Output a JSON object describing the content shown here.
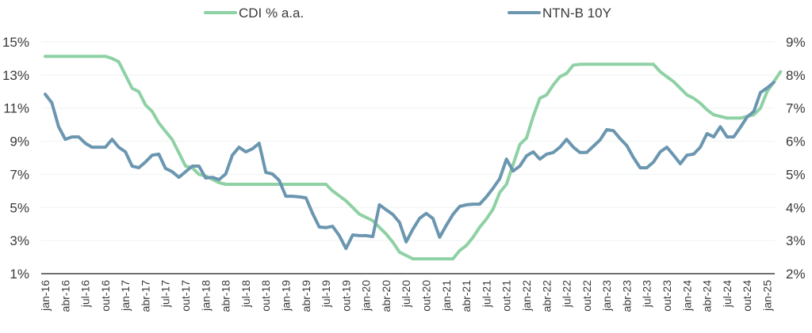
{
  "chart_data": {
    "type": "line",
    "title": "",
    "xlabel": "",
    "ylabel": "",
    "ylabel_right": "",
    "legend_position": "top-center",
    "grid": true,
    "left_axis": {
      "ylim": [
        1,
        15
      ],
      "ticks": [
        "1%",
        "3%",
        "5%",
        "7%",
        "9%",
        "11%",
        "13%",
        "15%"
      ]
    },
    "right_axis": {
      "ylim": [
        2,
        9
      ],
      "ticks": [
        "2%",
        "3%",
        "4%",
        "5%",
        "6%",
        "7%",
        "8%",
        "9%"
      ]
    },
    "x_tick_labels": [
      "jan-16",
      "abr-16",
      "jul-16",
      "out-16",
      "jan-17",
      "abr-17",
      "jul-17",
      "out-17",
      "jan-18",
      "abr-18",
      "jul-18",
      "out-18",
      "jan-19",
      "abr-19",
      "jul-19",
      "out-19",
      "jan-20",
      "abr-20",
      "jul-20",
      "out-20",
      "jan-21",
      "abr-21",
      "jul-21",
      "out-21",
      "jan-22",
      "abr-22",
      "jul-22",
      "out-22",
      "jan-23",
      "abr-23",
      "jul-23",
      "out-23",
      "jan-24",
      "abr-24",
      "jul-24",
      "out-24",
      "jan-25"
    ],
    "x_start": "jan-16",
    "x_frequency": "monthly",
    "series": [
      {
        "name": "CDI % a.a.",
        "axis": "left",
        "color": "#8ed1a4",
        "values": [
          14.13,
          14.13,
          14.13,
          14.13,
          14.13,
          14.13,
          14.13,
          14.13,
          14.13,
          14.13,
          14.0,
          13.8,
          13.0,
          12.2,
          12.0,
          11.2,
          10.8,
          10.1,
          9.6,
          9.1,
          8.3,
          7.5,
          7.4,
          7.0,
          6.9,
          6.7,
          6.5,
          6.4,
          6.4,
          6.4,
          6.4,
          6.4,
          6.4,
          6.4,
          6.4,
          6.4,
          6.4,
          6.4,
          6.4,
          6.4,
          6.4,
          6.4,
          6.4,
          6.0,
          5.7,
          5.4,
          5.0,
          4.6,
          4.4,
          4.2,
          3.8,
          3.4,
          2.9,
          2.3,
          2.1,
          1.9,
          1.9,
          1.9,
          1.9,
          1.9,
          1.9,
          1.9,
          2.4,
          2.7,
          3.2,
          3.8,
          4.3,
          4.9,
          5.9,
          6.4,
          7.6,
          8.8,
          9.2,
          10.5,
          11.6,
          11.8,
          12.4,
          12.9,
          13.1,
          13.6,
          13.65,
          13.65,
          13.65,
          13.65,
          13.65,
          13.65,
          13.65,
          13.65,
          13.65,
          13.65,
          13.65,
          13.65,
          13.2,
          12.9,
          12.6,
          12.2,
          11.8,
          11.6,
          11.3,
          10.9,
          10.6,
          10.5,
          10.4,
          10.4,
          10.4,
          10.5,
          10.6,
          11.0,
          12.0,
          12.6,
          13.2
        ]
      },
      {
        "name": "NTN-B 10Y",
        "axis": "right",
        "color": "#6b96b0",
        "values": [
          7.42,
          7.16,
          6.44,
          6.06,
          6.13,
          6.13,
          5.94,
          5.82,
          5.82,
          5.82,
          6.06,
          5.82,
          5.68,
          5.25,
          5.2,
          5.37,
          5.58,
          5.61,
          5.18,
          5.08,
          4.91,
          5.08,
          5.25,
          5.25,
          4.89,
          4.91,
          4.84,
          5.01,
          5.58,
          5.82,
          5.68,
          5.77,
          5.94,
          5.06,
          5.01,
          4.82,
          4.34,
          4.34,
          4.32,
          4.29,
          3.82,
          3.41,
          3.39,
          3.43,
          3.15,
          2.76,
          3.17,
          3.15,
          3.15,
          3.12,
          4.08,
          3.93,
          3.79,
          3.55,
          2.96,
          3.34,
          3.67,
          3.82,
          3.67,
          3.1,
          3.46,
          3.79,
          4.03,
          4.08,
          4.1,
          4.1,
          4.32,
          4.58,
          4.87,
          5.46,
          5.1,
          5.25,
          5.56,
          5.68,
          5.46,
          5.61,
          5.66,
          5.82,
          6.06,
          5.82,
          5.66,
          5.66,
          5.85,
          6.04,
          6.35,
          6.32,
          6.08,
          5.87,
          5.51,
          5.2,
          5.2,
          5.37,
          5.68,
          5.82,
          5.58,
          5.32,
          5.58,
          5.61,
          5.82,
          6.23,
          6.13,
          6.44,
          6.13,
          6.13,
          6.42,
          6.73,
          6.9,
          7.47,
          7.61,
          7.78
        ]
      }
    ]
  }
}
